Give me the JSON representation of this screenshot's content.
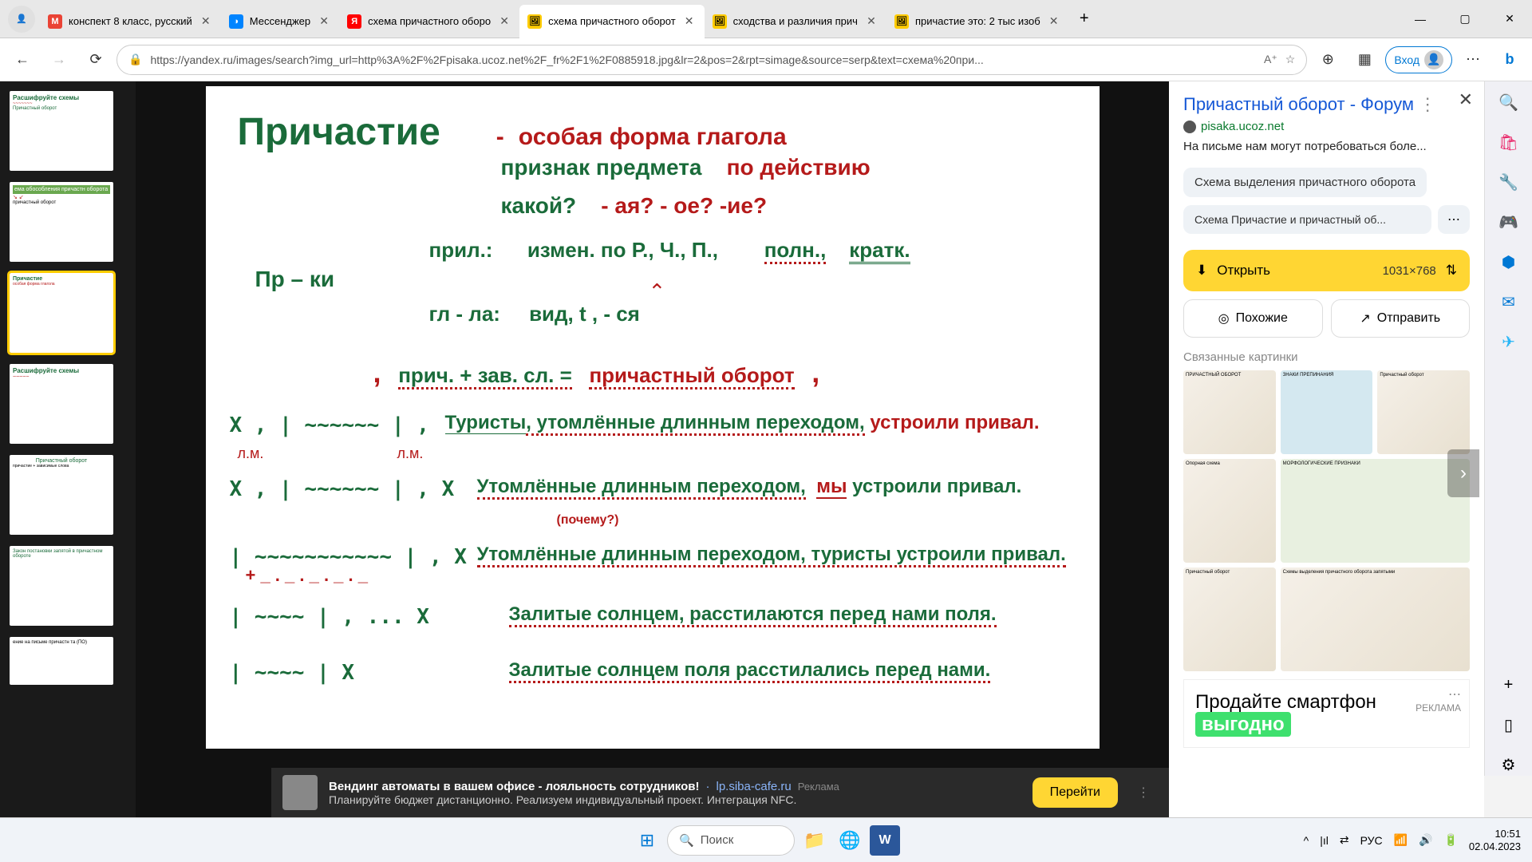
{
  "tabs": [
    {
      "icon": "M",
      "icon_bg": "#ea4335",
      "icon_color": "#fff",
      "title": "конспект 8 класс, русский"
    },
    {
      "icon": "◑",
      "icon_bg": "#0084ff",
      "icon_color": "#fff",
      "title": "Мессенджер"
    },
    {
      "icon": "Я",
      "icon_bg": "#ff0000",
      "icon_color": "#fff",
      "title": "схема причастного оборо"
    },
    {
      "icon": "🖼",
      "icon_bg": "#ffcc00",
      "icon_color": "#000",
      "title": "схема причастного оборот",
      "active": true
    },
    {
      "icon": "🖼",
      "icon_bg": "#ffcc00",
      "icon_color": "#000",
      "title": "сходства и различия прич"
    },
    {
      "icon": "🖼",
      "icon_bg": "#ffcc00",
      "icon_color": "#000",
      "title": "причастие это: 2 тыс изоб"
    }
  ],
  "url": "https://yandex.ru/images/search?img_url=http%3A%2F%2Fpisaka.ucoz.net%2F_fr%2F1%2F0885918.jpg&lr=2&pos=2&rpt=simage&source=serp&text=схема%20при...",
  "login_label": "Вход",
  "slide": {
    "title": "Причастие",
    "dash": "-",
    "def1": "особая форма глагола",
    "def2a": "признак предмета",
    "def2b": "по действию",
    "q": "какой?",
    "endings": "- ая?   - ое?   -ие?",
    "pril": "прил.:",
    "pril_v": "измен. по Р., Ч., П.,",
    "poln": "полн.,",
    "kratk": "кратк.",
    "prki": "Пр – ки",
    "glla": "гл - ла:",
    "glla_v": "вид, t ,  - ся",
    "formula_a": "прич.  +   зав. сл.  =",
    "formula_b": "причастный оборот",
    "ex1_a": "Туристы",
    "ex1_b": ", утомлённые длинным переходом,",
    "ex1_c": "устроили привал.",
    "lm": "л.м.",
    "ex2_a": "Утомлённые длинным переходом,",
    "ex2_my": "мы",
    "ex2_c": "устроили привал.",
    "why": "(почему?)",
    "ex3": "Утомлённые длинным переходом,  туристы  устроили привал.",
    "ex4": "Залитые солнцем, расстилаются перед нами поля.",
    "ex5": "Залитые солнцем  поля расстилались перед нами.",
    "sch1": "X ,  | ~~~~~~ |  ,",
    "sch2": "X ,  | ~~~~~~ |  , X",
    "sch3": "| ~~~~~~~~~~~ |  , X",
    "sch4": "| ~~~~ | , ... X",
    "sch5": "| ~~~~ |  X"
  },
  "panel": {
    "title": "Причастный оборот - Форум",
    "source": "pisaka.ucoz.net",
    "desc": "На письме нам могут потребоваться боле...",
    "chip1": "Схема выделения причастного оборота",
    "chip2": "Схема Причастие и причастный об...",
    "open": "Открыть",
    "dim": "1031×768",
    "similar": "Похожие",
    "send": "Отправить",
    "related": "Связанные картинки",
    "ad_text1": "Продайте смартфон",
    "ad_text2": "выгодно",
    "ad_label": "РЕКЛАМА"
  },
  "bottom_ad": {
    "title": "Вендинг автоматы в вашем офисе - лояльность сотрудников!",
    "source": "lp.siba-cafe.ru",
    "badge": "Реклама",
    "sub": "Планируйте бюджет дистанционно. Реализуем индивидуальный проект. Интеграция NFC.",
    "go": "Перейти"
  },
  "taskbar": {
    "search": "Поиск",
    "lang": "РУС",
    "time": "10:51",
    "date": "02.04.2023"
  }
}
